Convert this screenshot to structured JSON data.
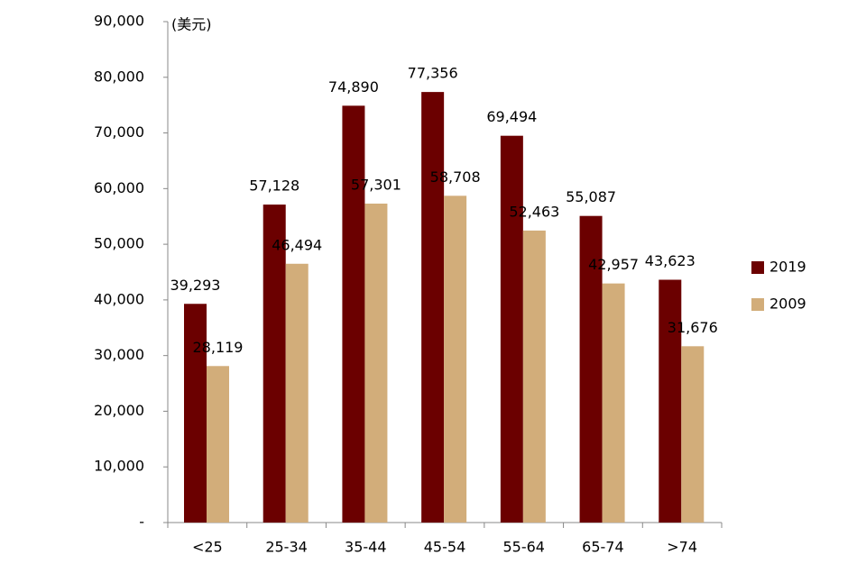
{
  "chart_data": {
    "type": "bar",
    "y_label": "(美元)",
    "categories": [
      "<25",
      "25-34",
      "35-44",
      "45-54",
      "55-64",
      "65-74",
      ">74"
    ],
    "series": [
      {
        "name": "2019",
        "color": "#6b0000",
        "values": [
          39293,
          57128,
          74890,
          77356,
          69494,
          55087,
          43623
        ],
        "value_labels": [
          "39,293",
          "57,128",
          "74,890",
          "77,356",
          "69,494",
          "55,087",
          "43,623"
        ]
      },
      {
        "name": "2009",
        "color": "#d2ad7a",
        "values": [
          28119,
          46494,
          57301,
          58708,
          52463,
          42957,
          31676
        ],
        "value_labels": [
          "28,119",
          "46,494",
          "57,301",
          "58,708",
          "52,463",
          "42,957",
          "31,676"
        ]
      }
    ],
    "ylim": [
      0,
      90000
    ],
    "yticks": [
      {
        "value": 0,
        "label": "-"
      },
      {
        "value": 10000,
        "label": "10,000"
      },
      {
        "value": 20000,
        "label": "20,000"
      },
      {
        "value": 30000,
        "label": "30,000"
      },
      {
        "value": 40000,
        "label": "40,000"
      },
      {
        "value": 50000,
        "label": "50,000"
      },
      {
        "value": 60000,
        "label": "60,000"
      },
      {
        "value": 70000,
        "label": "70,000"
      },
      {
        "value": 80000,
        "label": "80,000"
      },
      {
        "value": 90000,
        "label": "90,000"
      }
    ],
    "grid": false,
    "legend": "right"
  }
}
